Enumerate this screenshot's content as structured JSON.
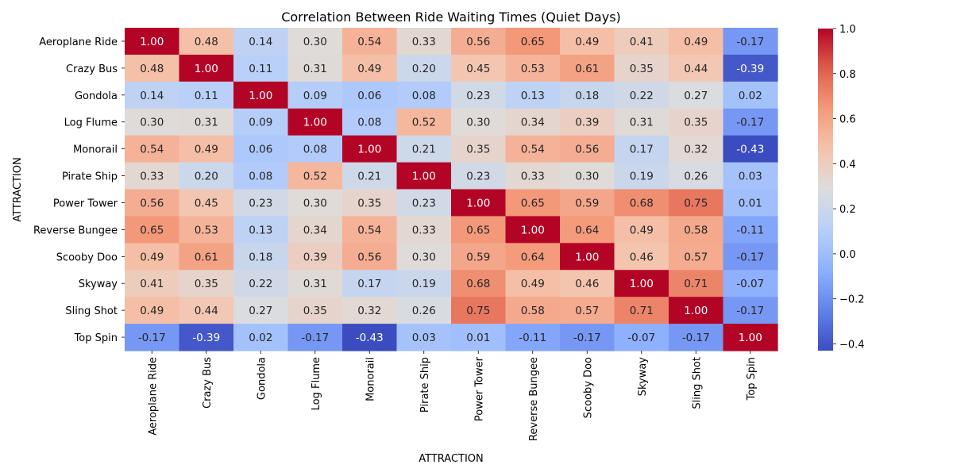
{
  "chart_data": {
    "type": "heatmap",
    "title": "Correlation Between Ride Waiting Times (Quiet Days)",
    "xlabel": "ATTRACTION",
    "ylabel": "ATTRACTION",
    "rows": [
      "Aeroplane Ride",
      "Crazy Bus",
      "Gondola",
      "Log Flume",
      "Monorail",
      "Pirate Ship",
      "Power Tower",
      "Reverse Bungee",
      "Scooby Doo",
      "Skyway",
      "Sling Shot",
      "Top Spin"
    ],
    "cols": [
      "Aeroplane Ride",
      "Crazy Bus",
      "Gondola",
      "Log Flume",
      "Monorail",
      "Pirate Ship",
      "Power Tower",
      "Reverse Bungee",
      "Scooby Doo",
      "Skyway",
      "Sling Shot",
      "Top Spin"
    ],
    "values": [
      [
        1.0,
        0.48,
        0.14,
        0.3,
        0.54,
        0.33,
        0.56,
        0.65,
        0.49,
        0.41,
        0.49,
        -0.17
      ],
      [
        0.48,
        1.0,
        0.11,
        0.31,
        0.49,
        0.2,
        0.45,
        0.53,
        0.61,
        0.35,
        0.44,
        -0.39
      ],
      [
        0.14,
        0.11,
        1.0,
        0.09,
        0.06,
        0.08,
        0.23,
        0.13,
        0.18,
        0.22,
        0.27,
        0.02
      ],
      [
        0.3,
        0.31,
        0.09,
        1.0,
        0.08,
        0.52,
        0.3,
        0.34,
        0.39,
        0.31,
        0.35,
        -0.17
      ],
      [
        0.54,
        0.49,
        0.06,
        0.08,
        1.0,
        0.21,
        0.35,
        0.54,
        0.56,
        0.17,
        0.32,
        -0.43
      ],
      [
        0.33,
        0.2,
        0.08,
        0.52,
        0.21,
        1.0,
        0.23,
        0.33,
        0.3,
        0.19,
        0.26,
        0.03
      ],
      [
        0.56,
        0.45,
        0.23,
        0.3,
        0.35,
        0.23,
        1.0,
        0.65,
        0.59,
        0.68,
        0.75,
        0.01
      ],
      [
        0.65,
        0.53,
        0.13,
        0.34,
        0.54,
        0.33,
        0.65,
        1.0,
        0.64,
        0.49,
        0.58,
        -0.11
      ],
      [
        0.49,
        0.61,
        0.18,
        0.39,
        0.56,
        0.3,
        0.59,
        0.64,
        1.0,
        0.46,
        0.57,
        -0.17
      ],
      [
        0.41,
        0.35,
        0.22,
        0.31,
        0.17,
        0.19,
        0.68,
        0.49,
        0.46,
        1.0,
        0.71,
        -0.07
      ],
      [
        0.49,
        0.44,
        0.27,
        0.35,
        0.32,
        0.26,
        0.75,
        0.58,
        0.57,
        0.71,
        1.0,
        -0.17
      ],
      [
        -0.17,
        -0.39,
        0.02,
        -0.17,
        -0.43,
        0.03,
        0.01,
        -0.11,
        -0.17,
        -0.07,
        -0.17,
        1.0
      ]
    ],
    "value_format": "2 decimals",
    "colormap": "coolwarm",
    "vmin": -0.43,
    "vmax": 1.0,
    "colorbar": {
      "ticks": [
        -0.4,
        -0.2,
        0.0,
        0.2,
        0.4,
        0.6,
        0.8,
        1.0
      ],
      "tick_labels": [
        "−0.4",
        "−0.2",
        "0.0",
        "0.2",
        "0.4",
        "0.6",
        "0.8",
        "1.0"
      ],
      "placement": "right"
    },
    "grid": false
  }
}
